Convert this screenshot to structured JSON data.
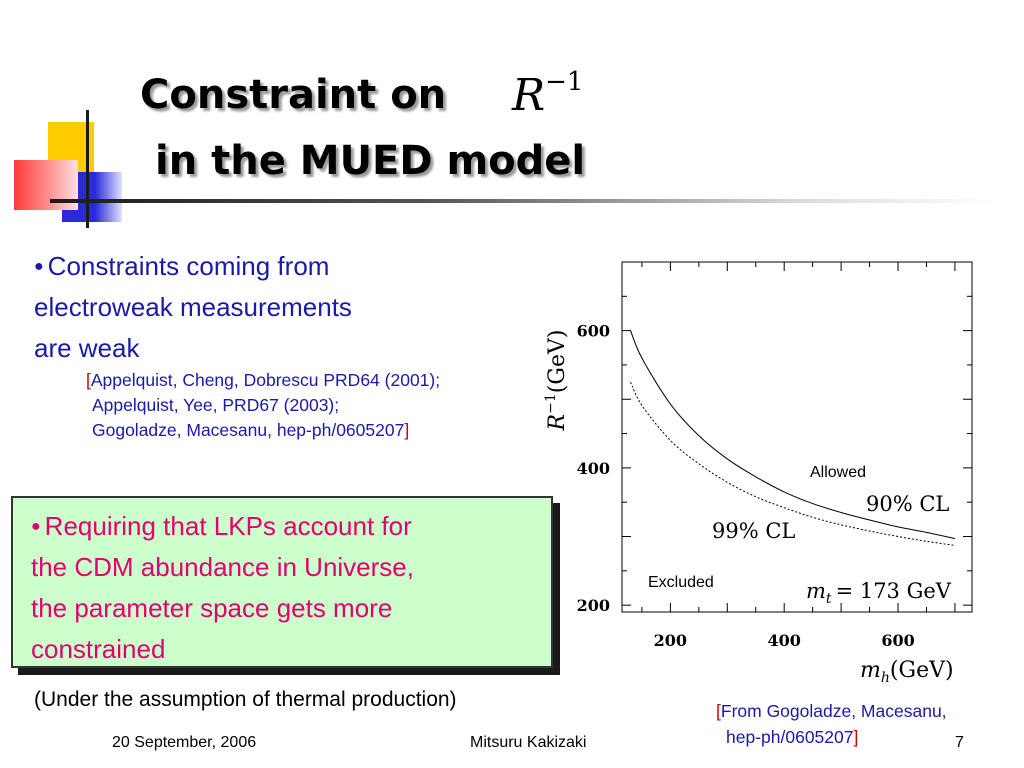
{
  "title": {
    "line1": "Constraint on",
    "math_base": "R",
    "math_exp": "−1",
    "line2": "in the MUED model"
  },
  "bullet1": {
    "text_lines": [
      "Constraints coming from",
      "electroweak measurements",
      "are weak"
    ],
    "refs": [
      "Appelquist, Cheng, Dobrescu PRD64 (2001);",
      "Appelquist, Yee, PRD67 (2003);",
      "Gogoladze, Macesanu, hep-ph/0605207"
    ]
  },
  "bullet2": {
    "text_lines": [
      "Requiring that LKPs account for",
      "the CDM abundance in Universe,",
      "the parameter space gets more",
      "constrained"
    ]
  },
  "assumption": "(Under the assumption of thermal production)",
  "source": {
    "lines": [
      "From Gogoladze, Macesanu,",
      "hep-ph/0605207"
    ]
  },
  "footer": {
    "date": "20 September, 2006",
    "author": "Mitsuru Kakizaki",
    "page": "7"
  },
  "colors": {
    "blue_text": "#1a1aa8",
    "magenta_text": "#e0006f",
    "red_text": "#cc0000",
    "box_fill": "#ccffcc"
  },
  "chart_data": {
    "type": "line",
    "ylabel_base": "R",
    "ylabel_exp": "−1",
    "ylabel_unit": "(GeV)",
    "xlabel_base": "m",
    "xlabel_sub": "h",
    "xlabel_unit": "(GeV)",
    "xlim": [
      115,
      730
    ],
    "ylim": [
      190,
      700
    ],
    "x_ticks": [
      200,
      400,
      600
    ],
    "y_ticks": [
      200,
      400,
      600
    ],
    "series": [
      {
        "name": "90% CL",
        "style": "solid",
        "x": [
          130,
          150,
          200,
          250,
          300,
          350,
          400,
          450,
          500,
          550,
          600,
          650,
          700
        ],
        "y": [
          600,
          560,
          493,
          447,
          413,
          387,
          365,
          348,
          335,
          324,
          314,
          306,
          297
        ]
      },
      {
        "name": "99% CL",
        "style": "dotted",
        "x": [
          130,
          150,
          200,
          250,
          300,
          350,
          400,
          450,
          500,
          550,
          600,
          650,
          700
        ],
        "y": [
          525,
          491,
          440,
          406,
          379,
          358,
          342,
          328,
          317,
          308,
          300,
          293,
          287
        ]
      }
    ],
    "annotations": {
      "allowed": "Allowed",
      "excluded": "Excluded",
      "cl90": "90% CL",
      "cl99": "99% CL",
      "mt_base": "m",
      "mt_sub": "t",
      "mt_value": "= 173 GeV"
    }
  }
}
